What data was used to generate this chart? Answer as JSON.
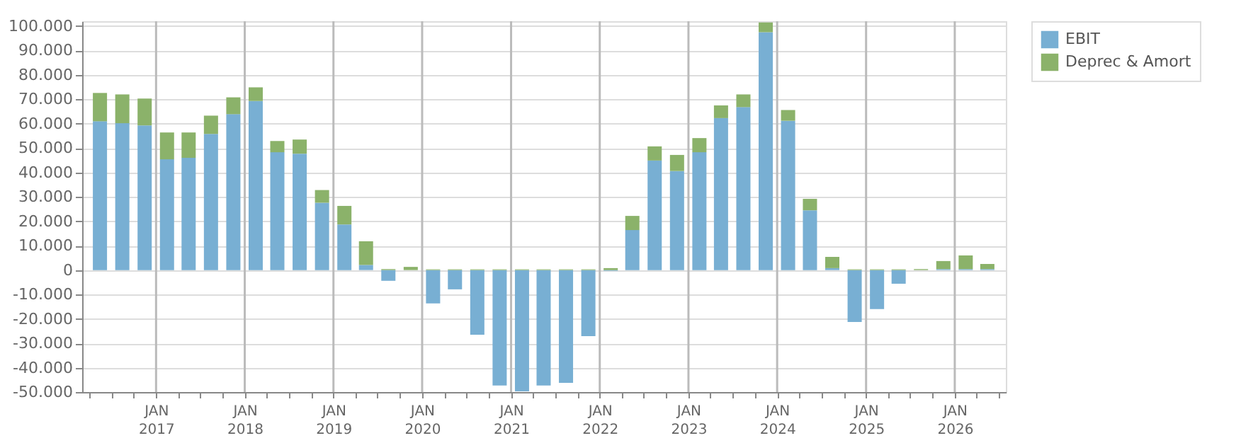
{
  "chart_data": {
    "type": "bar",
    "stacked": true,
    "x": [
      "2016-05-15",
      "2016-08-15",
      "2016-11-15",
      "2017-02-15",
      "2017-05-15",
      "2017-08-15",
      "2017-11-15",
      "2018-02-15",
      "2018-05-15",
      "2018-08-15",
      "2018-11-15",
      "2019-02-15",
      "2019-05-15",
      "2019-08-15",
      "2019-11-15",
      "2020-02-15",
      "2020-05-15",
      "2020-08-15",
      "2020-11-15",
      "2021-02-15",
      "2021-05-15",
      "2021-08-15",
      "2021-11-15",
      "2022-02-15",
      "2022-05-15",
      "2022-08-15",
      "2022-11-15",
      "2023-02-15",
      "2023-05-15",
      "2023-08-15",
      "2023-11-15",
      "2024-02-15",
      "2024-05-15",
      "2024-08-15",
      "2024-11-15",
      "2025-02-15",
      "2025-05-15",
      "2025-08-15",
      "2025-11-15",
      "2026-02-15",
      "2026-05-15"
    ],
    "series": [
      {
        "name": "EBIT",
        "color": "#78afd3",
        "values": [
          61000,
          60200,
          59300,
          45400,
          46000,
          55800,
          63900,
          69300,
          48300,
          47700,
          27600,
          18700,
          2100,
          -4400,
          0,
          -13700,
          -7900,
          -26500,
          -47300,
          -49700,
          -47300,
          -46200,
          -27100,
          -300,
          16400,
          44900,
          40600,
          48300,
          62300,
          66800,
          97500,
          61200,
          24500,
          800,
          -21300,
          -16000,
          -5600,
          0,
          400,
          400,
          400
        ]
      },
      {
        "name": "Deprec & Amort",
        "color": "#8bb26a",
        "values": [
          11600,
          11800,
          11000,
          11000,
          10400,
          7500,
          6900,
          5600,
          4600,
          5800,
          5200,
          7600,
          9700,
          400,
          1300,
          300,
          300,
          300,
          300,
          300,
          300,
          300,
          300,
          800,
          5800,
          5800,
          6600,
          5800,
          5200,
          5200,
          4000,
          4400,
          4700,
          4600,
          300,
          300,
          300,
          400,
          3300,
          5600,
          2100
        ]
      }
    ],
    "xlim": [
      "2016-04-01",
      "2026-07-01"
    ],
    "xticks": [
      {
        "value": "2016-04-01",
        "label": null
      },
      {
        "value": "2016-07-01",
        "label": null
      },
      {
        "value": "2016-10-01",
        "label": null
      },
      {
        "value": "2017-01-01",
        "label": "JAN 2017"
      },
      {
        "value": "2017-04-01",
        "label": null
      },
      {
        "value": "2017-07-01",
        "label": null
      },
      {
        "value": "2017-10-01",
        "label": null
      },
      {
        "value": "2018-01-01",
        "label": "JAN 2018"
      },
      {
        "value": "2018-04-01",
        "label": null
      },
      {
        "value": "2018-07-01",
        "label": null
      },
      {
        "value": "2018-10-01",
        "label": null
      },
      {
        "value": "2019-01-01",
        "label": "JAN 2019"
      },
      {
        "value": "2019-04-01",
        "label": null
      },
      {
        "value": "2019-07-01",
        "label": null
      },
      {
        "value": "2019-10-01",
        "label": null
      },
      {
        "value": "2020-01-01",
        "label": "JAN 2020"
      },
      {
        "value": "2020-04-01",
        "label": null
      },
      {
        "value": "2020-07-01",
        "label": null
      },
      {
        "value": "2020-10-01",
        "label": null
      },
      {
        "value": "2021-01-01",
        "label": "JAN 2021"
      },
      {
        "value": "2021-04-01",
        "label": null
      },
      {
        "value": "2021-07-01",
        "label": null
      },
      {
        "value": "2021-10-01",
        "label": null
      },
      {
        "value": "2022-01-01",
        "label": "JAN 2022"
      },
      {
        "value": "2022-04-01",
        "label": null
      },
      {
        "value": "2022-07-01",
        "label": null
      },
      {
        "value": "2022-10-01",
        "label": null
      },
      {
        "value": "2023-01-01",
        "label": "JAN 2023"
      },
      {
        "value": "2023-04-01",
        "label": null
      },
      {
        "value": "2023-07-01",
        "label": null
      },
      {
        "value": "2023-10-01",
        "label": null
      },
      {
        "value": "2024-01-01",
        "label": "JAN 2024"
      },
      {
        "value": "2024-04-01",
        "label": null
      },
      {
        "value": "2024-07-01",
        "label": null
      },
      {
        "value": "2024-10-01",
        "label": null
      },
      {
        "value": "2025-01-01",
        "label": "JAN 2025"
      },
      {
        "value": "2025-04-01",
        "label": null
      },
      {
        "value": "2025-07-01",
        "label": null
      },
      {
        "value": "2025-10-01",
        "label": null
      },
      {
        "value": "2026-01-01",
        "label": "JAN 2026"
      },
      {
        "value": "2026-04-01",
        "label": null
      },
      {
        "value": "2026-07-01",
        "label": null
      }
    ],
    "ylim": [
      -50000,
      102000
    ],
    "yticks": [
      {
        "value": -50000,
        "label": "-50.000"
      },
      {
        "value": -40000,
        "label": "-40.000"
      },
      {
        "value": -30000,
        "label": "-30.000"
      },
      {
        "value": -20000,
        "label": "-20.000"
      },
      {
        "value": -10000,
        "label": "-10.000"
      },
      {
        "value": 0,
        "label": "0"
      },
      {
        "value": 10000,
        "label": "10.000"
      },
      {
        "value": 20000,
        "label": "20.000"
      },
      {
        "value": 30000,
        "label": "30.000"
      },
      {
        "value": 40000,
        "label": "40.000"
      },
      {
        "value": 50000,
        "label": "50.000"
      },
      {
        "value": 60000,
        "label": "60.000"
      },
      {
        "value": 70000,
        "label": "70.000"
      },
      {
        "value": 80000,
        "label": "80.000"
      },
      {
        "value": 90000,
        "label": "90.000"
      },
      {
        "value": 100000,
        "label": "100.000"
      }
    ],
    "grid": true,
    "legend": "top right"
  }
}
